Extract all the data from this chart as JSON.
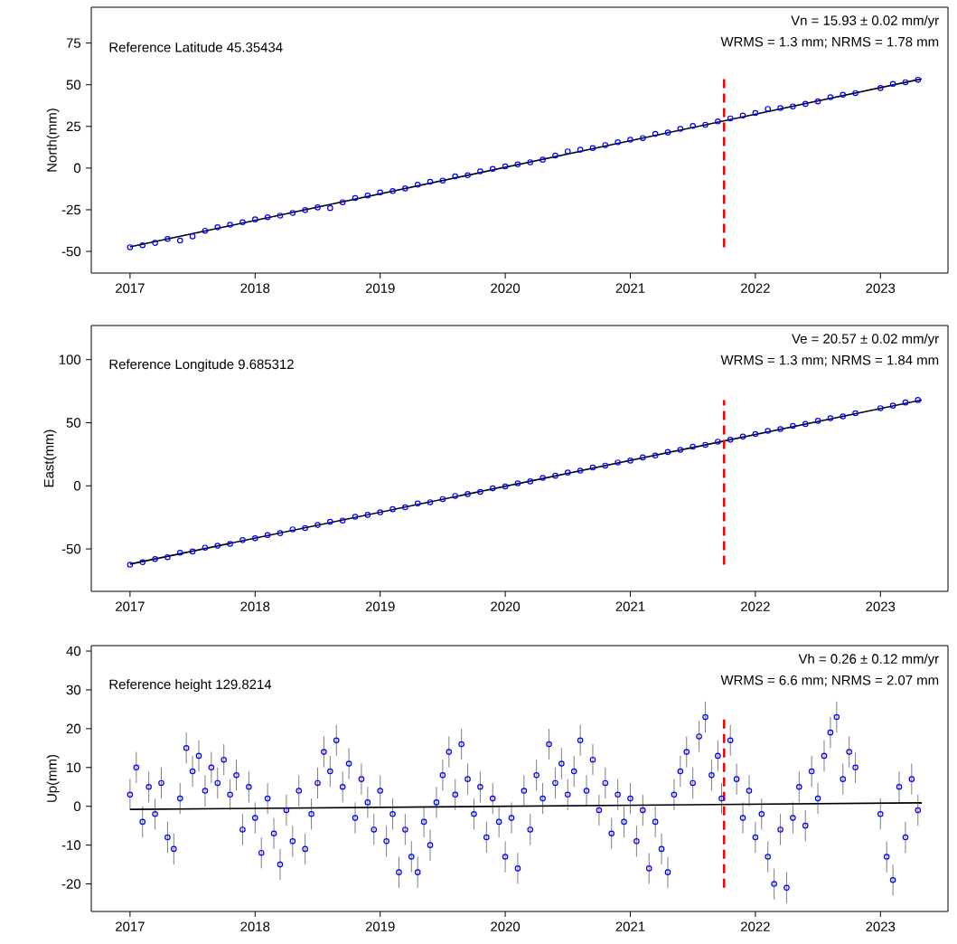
{
  "chart_data": [
    {
      "type": "scatter",
      "ylabel": "North(mm)",
      "xlim": [
        2016.69,
        2023.54
      ],
      "xticks": [
        2017,
        2018,
        2019,
        2020,
        2021,
        2022,
        2023
      ],
      "ylim": [
        -63,
        96.5
      ],
      "yticks": [
        -50,
        -25,
        0,
        25,
        50,
        75
      ],
      "annotations": [
        "Reference Latitude 45.35434",
        "Vn = 15.93 ± 0.02 mm/yr",
        "WRMS = 1.3 mm; NRMS = 1.78 mm"
      ],
      "ref_lines": [
        {
          "axis": "x",
          "value": 2021.75,
          "color": "#ff0000",
          "line_style": "dashed"
        }
      ],
      "series": [
        {
          "marker": "circle",
          "color": "#0000ff",
          "x": [
            2017.0,
            2017.1,
            2017.2,
            2017.3,
            2017.4,
            2017.5,
            2017.6,
            2017.7,
            2017.8,
            2017.9,
            2018.0,
            2018.1,
            2018.2,
            2018.3,
            2018.4,
            2018.5,
            2018.6,
            2018.7,
            2018.8,
            2018.9,
            2019.0,
            2019.1,
            2019.2,
            2019.3,
            2019.4,
            2019.5,
            2019.6,
            2019.7,
            2019.8,
            2019.9,
            2020.0,
            2020.1,
            2020.2,
            2020.3,
            2020.4,
            2020.5,
            2020.6,
            2020.7,
            2020.8,
            2020.9,
            2021.0,
            2021.1,
            2021.2,
            2021.3,
            2021.4,
            2021.5,
            2021.6,
            2021.7,
            2021.8,
            2021.9,
            2022.0,
            2022.1,
            2022.2,
            2022.3,
            2022.4,
            2022.5,
            2022.6,
            2022.7,
            2022.8,
            2023.0,
            2023.1,
            2023.2,
            2023.3
          ],
          "values": [
            -47.5,
            -46.3,
            -44.9,
            -42.5,
            -43.5,
            -41.0,
            -37.6,
            -35.5,
            -34.0,
            -32.5,
            -30.8,
            -29.5,
            -28.5,
            -26.9,
            -25.2,
            -23.6,
            -24.0,
            -20.5,
            -18.0,
            -16.5,
            -14.6,
            -13.8,
            -12.2,
            -10.0,
            -8.2,
            -7.5,
            -5.0,
            -4.3,
            -2.0,
            -0.5,
            1.0,
            2.2,
            3.5,
            5.0,
            7.5,
            10.0,
            11.0,
            12.0,
            13.8,
            15.5,
            17.0,
            18.0,
            20.5,
            21.3,
            23.5,
            25.3,
            26.0,
            28.0,
            29.8,
            31.5,
            33.0,
            35.5,
            36.0,
            37.0,
            38.5,
            40.0,
            42.5,
            44.0,
            45.0,
            48.0,
            50.5,
            51.5,
            53.0
          ]
        },
        {
          "type": "line",
          "color": "#000000",
          "x": [
            2017.0,
            2023.33
          ],
          "values": [
            -47.3,
            53.5
          ]
        }
      ]
    },
    {
      "type": "scatter",
      "ylabel": "East(mm)",
      "xlim": [
        2016.69,
        2023.54
      ],
      "xticks": [
        2017,
        2018,
        2019,
        2020,
        2021,
        2022,
        2023
      ],
      "ylim": [
        -83.6,
        127
      ],
      "yticks": [
        -50,
        0,
        50,
        100
      ],
      "annotations": [
        "Reference Longitude 9.685312",
        "Ve = 20.57 ± 0.02 mm/yr",
        "WRMS = 1.3 mm; NRMS = 1.84 mm"
      ],
      "ref_lines": [
        {
          "axis": "x",
          "value": 2021.75,
          "color": "#ff0000",
          "line_style": "dashed"
        }
      ],
      "series": [
        {
          "marker": "circle",
          "color": "#0000ff",
          "x": [
            2017.0,
            2017.1,
            2017.2,
            2017.3,
            2017.4,
            2017.5,
            2017.6,
            2017.7,
            2017.8,
            2017.9,
            2018.0,
            2018.1,
            2018.2,
            2018.3,
            2018.4,
            2018.5,
            2018.6,
            2018.7,
            2018.8,
            2018.9,
            2019.0,
            2019.1,
            2019.2,
            2019.3,
            2019.4,
            2019.5,
            2019.6,
            2019.7,
            2019.8,
            2019.9,
            2020.0,
            2020.1,
            2020.2,
            2020.3,
            2020.4,
            2020.5,
            2020.6,
            2020.7,
            2020.8,
            2020.9,
            2021.0,
            2021.1,
            2021.2,
            2021.3,
            2021.4,
            2021.5,
            2021.6,
            2021.7,
            2021.8,
            2021.9,
            2022.0,
            2022.1,
            2022.2,
            2022.3,
            2022.4,
            2022.5,
            2022.6,
            2022.7,
            2022.8,
            2023.0,
            2023.1,
            2023.2,
            2023.3
          ],
          "values": [
            -62.5,
            -60.5,
            -58.0,
            -56.5,
            -53.0,
            -52.0,
            -49.0,
            -47.5,
            -46.0,
            -43.0,
            -41.5,
            -39.0,
            -37.5,
            -34.5,
            -33.5,
            -31.0,
            -28.5,
            -27.5,
            -24.5,
            -23.0,
            -21.0,
            -18.5,
            -17.0,
            -14.0,
            -13.0,
            -10.5,
            -8.0,
            -6.5,
            -4.8,
            -2.0,
            -0.5,
            2.0,
            3.5,
            6.3,
            8.0,
            10.5,
            12.0,
            14.5,
            16.0,
            18.5,
            20.0,
            22.5,
            24.0,
            26.8,
            28.5,
            31.0,
            32.5,
            35.0,
            36.5,
            39.0,
            41.0,
            43.5,
            45.0,
            47.5,
            49.0,
            51.5,
            53.5,
            55.0,
            57.5,
            61.5,
            63.5,
            66.0,
            68.0
          ]
        },
        {
          "type": "line",
          "color": "#000000",
          "x": [
            2017.0,
            2023.33
          ],
          "values": [
            -62.0,
            68.0
          ]
        }
      ]
    },
    {
      "type": "scatter",
      "ylabel": "Up(mm)",
      "xlim": [
        2016.69,
        2023.54
      ],
      "xticks": [
        2017,
        2018,
        2019,
        2020,
        2021,
        2022,
        2023
      ],
      "ylim": [
        -27.1,
        41.4
      ],
      "yticks": [
        -20,
        -10,
        0,
        10,
        20,
        30,
        40
      ],
      "annotations": [
        "Reference height 129.8214",
        "Vh = 0.26 ± 0.12 mm/yr",
        "WRMS = 6.6 mm; NRMS = 2.07 mm"
      ],
      "ref_lines": [
        {
          "axis": "x",
          "value": 2021.75,
          "color": "#ff0000",
          "line_style": "dashed"
        }
      ],
      "series": [
        {
          "marker": "circle",
          "color": "#0000ff",
          "x": [
            2017.0,
            2017.05,
            2017.1,
            2017.15,
            2017.2,
            2017.25,
            2017.3,
            2017.35,
            2017.4,
            2017.45,
            2017.5,
            2017.55,
            2017.6,
            2017.65,
            2017.7,
            2017.75,
            2017.8,
            2017.85,
            2017.9,
            2017.95,
            2018.0,
            2018.05,
            2018.1,
            2018.15,
            2018.2,
            2018.25,
            2018.3,
            2018.35,
            2018.4,
            2018.45,
            2018.5,
            2018.55,
            2018.6,
            2018.65,
            2018.7,
            2018.75,
            2018.8,
            2018.85,
            2018.9,
            2018.95,
            2019.0,
            2019.05,
            2019.1,
            2019.15,
            2019.2,
            2019.25,
            2019.3,
            2019.35,
            2019.4,
            2019.45,
            2019.5,
            2019.55,
            2019.6,
            2019.65,
            2019.7,
            2019.75,
            2019.8,
            2019.85,
            2019.9,
            2019.95,
            2020.0,
            2020.05,
            2020.1,
            2020.15,
            2020.2,
            2020.25,
            2020.3,
            2020.35,
            2020.4,
            2020.45,
            2020.5,
            2020.55,
            2020.6,
            2020.65,
            2020.7,
            2020.75,
            2020.8,
            2020.85,
            2020.9,
            2020.95,
            2021.0,
            2021.05,
            2021.1,
            2021.15,
            2021.2,
            2021.25,
            2021.3,
            2021.35,
            2021.4,
            2021.45,
            2021.5,
            2021.55,
            2021.6,
            2021.65,
            2021.7,
            2021.73,
            2021.8,
            2021.85,
            2021.9,
            2021.95,
            2022.0,
            2022.05,
            2022.1,
            2022.15,
            2022.2,
            2022.25,
            2022.3,
            2022.35,
            2022.4,
            2022.45,
            2022.5,
            2022.55,
            2022.6,
            2022.65,
            2022.7,
            2022.75,
            2022.8,
            2023.0,
            2023.05,
            2023.1,
            2023.15,
            2023.2,
            2023.25,
            2023.3
          ],
          "values": [
            3,
            10,
            -4,
            5,
            -2,
            6,
            -8,
            -11,
            2,
            15,
            9,
            13,
            4,
            10,
            6,
            12,
            3,
            8,
            -6,
            5,
            -3,
            -12,
            2,
            -7,
            -15,
            -1,
            -9,
            4,
            -11,
            -2,
            6,
            14,
            9,
            17,
            5,
            11,
            -3,
            7,
            1,
            -6,
            4,
            -9,
            -2,
            -17,
            -6,
            -13,
            -17,
            -4,
            -10,
            1,
            8,
            14,
            3,
            16,
            7,
            -2,
            5,
            -8,
            2,
            -4,
            -13,
            -3,
            -16,
            4,
            -6,
            8,
            2,
            16,
            6,
            11,
            3,
            9,
            17,
            4,
            12,
            -1,
            6,
            -7,
            3,
            -4,
            2,
            -9,
            -1,
            -16,
            -4,
            -11,
            -17,
            3,
            9,
            14,
            6,
            18,
            23,
            8,
            13,
            2,
            17,
            7,
            -3,
            4,
            -8,
            -2,
            -13,
            -20,
            -6,
            -21,
            -3,
            5,
            -5,
            9,
            2,
            13,
            19,
            23,
            7,
            14,
            10,
            -2,
            -13,
            -19,
            5,
            -8,
            7,
            -1
          ],
          "errors": [
            4,
            4,
            4,
            4,
            4,
            4,
            4,
            4,
            4,
            4,
            4,
            4,
            4,
            4,
            4,
            4,
            4,
            4,
            4,
            4,
            4,
            4,
            4,
            4,
            4,
            4,
            4,
            4,
            4,
            4,
            4,
            4,
            4,
            4,
            4,
            4,
            4,
            4,
            4,
            4,
            4,
            4,
            4,
            4,
            4,
            4,
            4,
            4,
            4,
            4,
            4,
            4,
            4,
            4,
            4,
            4,
            4,
            4,
            4,
            4,
            4,
            4,
            4,
            4,
            4,
            4,
            4,
            4,
            4,
            4,
            4,
            4,
            4,
            4,
            4,
            4,
            4,
            4,
            4,
            4,
            4,
            4,
            4,
            4,
            4,
            4,
            4,
            4,
            4,
            4,
            4,
            4,
            4,
            4,
            4,
            4,
            4,
            4,
            4,
            4,
            4,
            4,
            4,
            4,
            4,
            4,
            4,
            4,
            4,
            4,
            4,
            4,
            4,
            4,
            4,
            4,
            4,
            4,
            4,
            4,
            4,
            4,
            4,
            4
          ]
        },
        {
          "type": "line",
          "color": "#000000",
          "x": [
            2017.0,
            2023.33
          ],
          "values": [
            -0.8,
            0.9
          ]
        }
      ]
    }
  ]
}
